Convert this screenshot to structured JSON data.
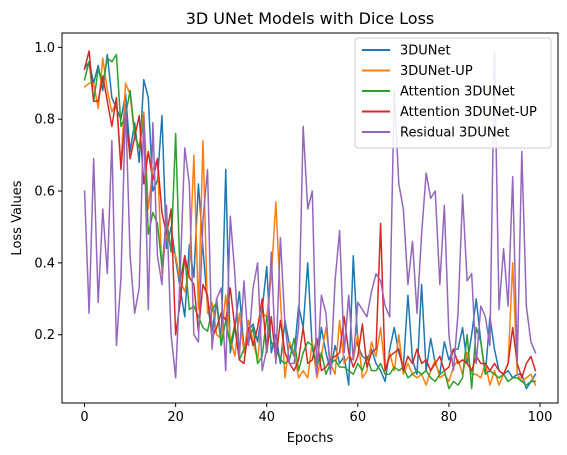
{
  "chart_data": {
    "type": "line",
    "title": "3D UNet Models with Dice Loss",
    "xlabel": "Epochs",
    "ylabel": "Loss Values",
    "xlim": [
      -4.95,
      103.95
    ],
    "ylim": [
      0.01,
      1.04
    ],
    "xticks": [
      0,
      20,
      40,
      60,
      80,
      100
    ],
    "yticks": [
      0.2,
      0.4,
      0.6,
      0.8,
      1.0
    ],
    "xtick_labels": [
      "0",
      "20",
      "40",
      "60",
      "80",
      "100"
    ],
    "ytick_labels": [
      "0.2",
      "0.4",
      "0.6",
      "0.8",
      "1.0"
    ],
    "grid": false,
    "legend_position": "top-right",
    "x": [
      0,
      1,
      2,
      3,
      4,
      5,
      6,
      7,
      8,
      9,
      10,
      11,
      12,
      13,
      14,
      15,
      16,
      17,
      18,
      19,
      20,
      21,
      22,
      23,
      24,
      25,
      26,
      27,
      28,
      29,
      30,
      31,
      32,
      33,
      34,
      35,
      36,
      37,
      38,
      39,
      40,
      41,
      42,
      43,
      44,
      45,
      46,
      47,
      48,
      49,
      50,
      51,
      52,
      53,
      54,
      55,
      56,
      57,
      58,
      59,
      60,
      61,
      62,
      63,
      64,
      65,
      66,
      67,
      68,
      69,
      70,
      71,
      72,
      73,
      74,
      75,
      76,
      77,
      78,
      79,
      80,
      81,
      82,
      83,
      84,
      85,
      86,
      87,
      88,
      89,
      90,
      91,
      92,
      93,
      94,
      95,
      96,
      97,
      98,
      99
    ],
    "series": [
      {
        "name": "3DUNet",
        "color": "#1f77b4",
        "values": [
          0.94,
          0.96,
          0.9,
          0.95,
          0.88,
          0.98,
          0.86,
          0.83,
          0.8,
          0.87,
          0.71,
          0.79,
          0.68,
          0.91,
          0.86,
          0.6,
          0.63,
          0.81,
          0.44,
          0.5,
          0.41,
          0.33,
          0.25,
          0.45,
          0.36,
          0.62,
          0.44,
          0.28,
          0.21,
          0.3,
          0.18,
          0.66,
          0.15,
          0.22,
          0.32,
          0.16,
          0.21,
          0.23,
          0.18,
          0.27,
          0.39,
          0.15,
          0.2,
          0.12,
          0.24,
          0.17,
          0.14,
          0.28,
          0.22,
          0.4,
          0.16,
          0.12,
          0.22,
          0.15,
          0.1,
          0.17,
          0.12,
          0.14,
          0.06,
          0.42,
          0.17,
          0.14,
          0.13,
          0.16,
          0.12,
          0.1,
          0.07,
          0.16,
          0.22,
          0.15,
          0.11,
          0.31,
          0.13,
          0.09,
          0.34,
          0.1,
          0.19,
          0.12,
          0.09,
          0.18,
          0.13,
          0.16,
          0.16,
          0.22,
          0.12,
          0.2,
          0.3,
          0.18,
          0.09,
          0.25,
          0.16,
          0.1,
          0.09,
          0.1,
          0.08,
          0.09,
          0.09,
          0.05,
          0.07,
          0.09
        ]
      },
      {
        "name": "3DUNet-UP",
        "color": "#ff7f0e",
        "values": [
          0.89,
          0.9,
          0.9,
          0.83,
          0.97,
          0.88,
          0.82,
          0.85,
          0.67,
          0.9,
          0.87,
          0.75,
          0.72,
          0.82,
          0.55,
          0.66,
          0.69,
          0.37,
          0.49,
          0.44,
          0.42,
          0.35,
          0.32,
          0.38,
          0.7,
          0.27,
          0.74,
          0.26,
          0.29,
          0.2,
          0.19,
          0.31,
          0.19,
          0.14,
          0.26,
          0.15,
          0.24,
          0.18,
          0.13,
          0.26,
          0.25,
          0.36,
          0.57,
          0.3,
          0.08,
          0.18,
          0.15,
          0.08,
          0.1,
          0.08,
          0.18,
          0.08,
          0.14,
          0.22,
          0.12,
          0.09,
          0.24,
          0.12,
          0.14,
          0.13,
          0.2,
          0.08,
          0.1,
          0.18,
          0.14,
          0.22,
          0.1,
          0.15,
          0.1,
          0.2,
          0.09,
          0.12,
          0.09,
          0.08,
          0.09,
          0.06,
          0.1,
          0.13,
          0.08,
          0.09,
          0.07,
          0.11,
          0.13,
          0.09,
          0.15,
          0.09,
          0.09,
          0.08,
          0.12,
          0.06,
          0.1,
          0.06,
          0.09,
          0.12,
          0.4,
          0.09,
          0.07,
          0.08,
          0.09,
          0.06
        ]
      },
      {
        "name": "Attention 3DUNet",
        "color": "#2ca02c",
        "values": [
          0.91,
          0.96,
          0.85,
          0.94,
          0.9,
          0.97,
          0.96,
          0.98,
          0.78,
          0.81,
          0.88,
          0.76,
          0.72,
          0.8,
          0.48,
          0.54,
          0.51,
          0.39,
          0.52,
          0.43,
          0.76,
          0.35,
          0.42,
          0.27,
          0.28,
          0.25,
          0.22,
          0.21,
          0.27,
          0.29,
          0.17,
          0.24,
          0.17,
          0.23,
          0.13,
          0.16,
          0.18,
          0.22,
          0.12,
          0.14,
          0.25,
          0.18,
          0.16,
          0.13,
          0.12,
          0.13,
          0.19,
          0.1,
          0.15,
          0.18,
          0.17,
          0.11,
          0.15,
          0.09,
          0.12,
          0.13,
          0.11,
          0.11,
          0.1,
          0.09,
          0.12,
          0.1,
          0.14,
          0.1,
          0.1,
          0.12,
          0.09,
          0.09,
          0.11,
          0.1,
          0.11,
          0.08,
          0.09,
          0.1,
          0.09,
          0.1,
          0.08,
          0.07,
          0.09,
          0.1,
          0.05,
          0.07,
          0.06,
          0.08,
          0.2,
          0.05,
          0.22,
          0.18,
          0.09,
          0.1,
          0.09,
          0.08,
          0.09,
          0.07,
          0.08,
          0.08,
          0.07,
          0.06,
          0.07,
          0.07
        ]
      },
      {
        "name": "Attention 3DUNet-UP",
        "color": "#d62728",
        "values": [
          0.94,
          0.99,
          0.85,
          0.85,
          0.92,
          0.85,
          0.78,
          0.86,
          0.66,
          0.82,
          0.69,
          0.75,
          0.81,
          0.62,
          0.71,
          0.63,
          0.69,
          0.54,
          0.48,
          0.55,
          0.2,
          0.29,
          0.42,
          0.36,
          0.34,
          0.21,
          0.34,
          0.31,
          0.19,
          0.22,
          0.26,
          0.24,
          0.33,
          0.22,
          0.13,
          0.12,
          0.22,
          0.17,
          0.22,
          0.3,
          0.15,
          0.25,
          0.13,
          0.24,
          0.15,
          0.12,
          0.1,
          0.13,
          0.22,
          0.12,
          0.13,
          0.19,
          0.1,
          0.11,
          0.13,
          0.14,
          0.15,
          0.25,
          0.15,
          0.11,
          0.14,
          0.23,
          0.11,
          0.15,
          0.16,
          0.51,
          0.1,
          0.14,
          0.15,
          0.16,
          0.1,
          0.14,
          0.12,
          0.16,
          0.12,
          0.13,
          0.1,
          0.12,
          0.14,
          0.1,
          0.11,
          0.16,
          0.12,
          0.13,
          0.12,
          0.1,
          0.14,
          0.12,
          0.12,
          0.1,
          0.12,
          0.1,
          0.09,
          0.12,
          0.22,
          0.12,
          0.08,
          0.12,
          0.14,
          0.1
        ]
      },
      {
        "name": "Residual 3DUNet",
        "color": "#9467bd",
        "values": [
          0.6,
          0.26,
          0.69,
          0.29,
          0.55,
          0.37,
          0.74,
          0.17,
          0.36,
          0.84,
          0.42,
          0.26,
          0.33,
          0.81,
          0.27,
          0.79,
          0.42,
          0.34,
          0.56,
          0.2,
          0.08,
          0.37,
          0.72,
          0.62,
          0.2,
          0.18,
          0.52,
          0.66,
          0.16,
          0.3,
          0.33,
          0.1,
          0.53,
          0.37,
          0.14,
          0.35,
          0.17,
          0.33,
          0.4,
          0.1,
          0.16,
          0.43,
          0.12,
          0.47,
          0.23,
          0.12,
          0.12,
          0.22,
          0.78,
          0.55,
          0.6,
          0.09,
          0.31,
          0.26,
          0.09,
          0.35,
          0.49,
          0.15,
          0.31,
          0.13,
          0.29,
          0.27,
          0.25,
          0.32,
          0.37,
          0.35,
          0.28,
          0.25,
          0.88,
          0.62,
          0.55,
          0.34,
          0.46,
          0.26,
          0.48,
          0.65,
          0.58,
          0.6,
          0.34,
          0.56,
          0.2,
          0.1,
          0.26,
          0.59,
          0.35,
          0.37,
          0.12,
          0.28,
          0.25,
          0.17,
          0.99,
          0.27,
          0.44,
          0.28,
          0.64,
          0.12,
          0.71,
          0.28,
          0.18,
          0.15
        ]
      }
    ]
  }
}
